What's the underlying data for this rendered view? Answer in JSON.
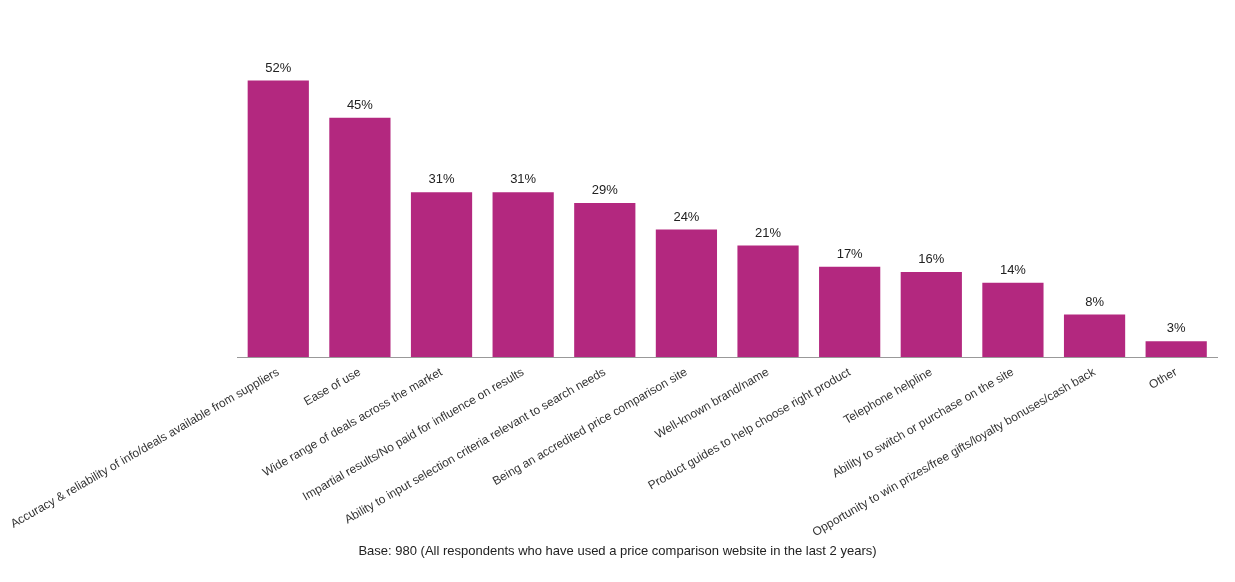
{
  "chart_data": {
    "type": "bar",
    "categories": [
      "Accuracy & reliability of info/deals available from suppliers",
      "Ease of use",
      "Wide range of deals across the market",
      "Impartial results/No paid for influence on results",
      "Ability to input selection criteria relevant to search needs",
      "Being an accredited price comparison site",
      "Well-known brand/name",
      "Product guides to help choose right product",
      "Telephone helpline",
      "Ability to switch or purchase on the site",
      "Opportunity to win prizes/free gifts/loyalty bonuses/cash back",
      "Other"
    ],
    "values": [
      52,
      45,
      31,
      31,
      29,
      24,
      21,
      17,
      16,
      14,
      8,
      3
    ],
    "value_labels": [
      "52%",
      "45%",
      "31%",
      "31%",
      "29%",
      "24%",
      "21%",
      "17%",
      "16%",
      "14%",
      "8%",
      "3%"
    ],
    "color": "#b3287f",
    "tick_labels": "x",
    "grid": false,
    "legend": false,
    "annotations": [
      "Base: 980 (All respondents who have used a price comparison website in the last 2 years)"
    ]
  }
}
